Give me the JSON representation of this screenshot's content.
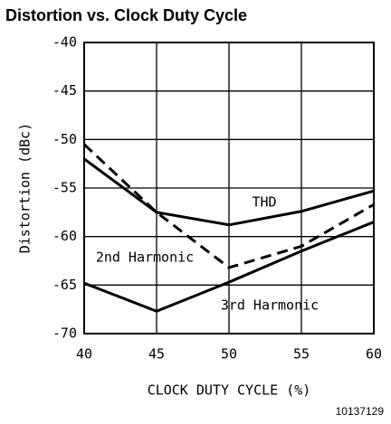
{
  "chart_data": {
    "type": "line",
    "title": "Distortion vs. Clock Duty Cycle",
    "x_label": "CLOCK DUTY CYCLE (%)",
    "y_label": "Distortion (dBc)",
    "footnote": "10137129",
    "x": [
      40,
      45,
      50,
      55,
      60
    ],
    "series": [
      {
        "name": "THD",
        "color": "#000000",
        "dashed": false,
        "values": [
          -52,
          -57.5,
          -58.8,
          -57.4,
          -55.3
        ]
      },
      {
        "name": "2nd Harmonic",
        "color": "#000000",
        "dashed": true,
        "values": [
          -50.5,
          -57.5,
          -63.2,
          -61,
          -56.7
        ]
      },
      {
        "name": "3rd Harmonic",
        "color": "#000000",
        "dashed": false,
        "values": [
          -64.8,
          -67.7,
          -64.7,
          -61.5,
          -58.5
        ]
      }
    ],
    "xlim": [
      40,
      60
    ],
    "xticks": [
      40,
      45,
      50,
      55,
      60
    ],
    "ylim": [
      -70,
      -40
    ],
    "yticks": [
      -40,
      -45,
      -50,
      -55,
      -60,
      -65,
      -70
    ],
    "grid": true
  }
}
